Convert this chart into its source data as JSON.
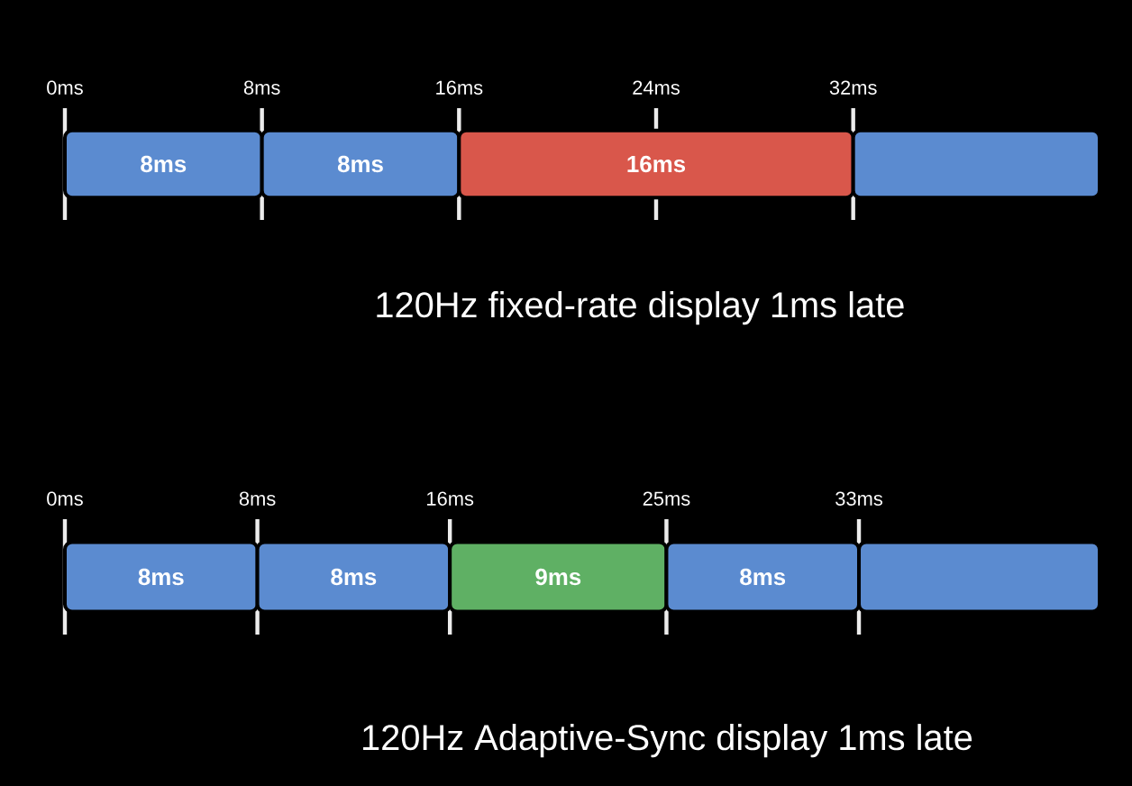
{
  "chart_data": [
    {
      "type": "bar",
      "orientation": "horizontal",
      "stacked": true,
      "title": "120Hz fixed-rate display 1ms late",
      "categories": [
        null
      ],
      "xlim": [
        0,
        42
      ],
      "series": [
        {
          "color": "#5b8bd0",
          "values": [
            8
          ],
          "value_labels": [
            "8ms"
          ]
        },
        {
          "color": "#5b8bd0",
          "values": [
            8
          ],
          "value_labels": [
            "8ms"
          ]
        },
        {
          "color": "#d9574b",
          "values": [
            16
          ],
          "value_labels": [
            "16ms"
          ]
        },
        {
          "color": "#5b8bd0",
          "values": [
            10
          ],
          "value_labels": [
            null
          ]
        }
      ],
      "xticks": [
        {
          "value": 0,
          "label": "0ms"
        },
        {
          "value": 8,
          "label": "8ms"
        },
        {
          "value": 16,
          "label": "16ms"
        },
        {
          "value": 24,
          "label": "24ms"
        },
        {
          "value": 32,
          "label": "32ms"
        }
      ],
      "grid": "x"
    },
    {
      "type": "bar",
      "orientation": "horizontal",
      "stacked": true,
      "title": "120Hz Adaptive-Sync display 1ms late",
      "categories": [
        null
      ],
      "xlim": [
        0,
        43
      ],
      "series": [
        {
          "color": "#5b8bd0",
          "values": [
            8
          ],
          "value_labels": [
            "8ms"
          ]
        },
        {
          "color": "#5b8bd0",
          "values": [
            8
          ],
          "value_labels": [
            "8ms"
          ]
        },
        {
          "color": "#5fb064",
          "values": [
            9
          ],
          "value_labels": [
            "9ms"
          ]
        },
        {
          "color": "#5b8bd0",
          "values": [
            8
          ],
          "value_labels": [
            "8ms"
          ]
        },
        {
          "color": "#5b8bd0",
          "values": [
            10
          ],
          "value_labels": [
            null
          ]
        }
      ],
      "xticks": [
        {
          "value": 0,
          "label": "0ms"
        },
        {
          "value": 8,
          "label": "8ms"
        },
        {
          "value": 16,
          "label": "16ms"
        },
        {
          "value": 25,
          "label": "25ms"
        },
        {
          "value": 33,
          "label": "33ms"
        }
      ],
      "grid": "x"
    }
  ]
}
